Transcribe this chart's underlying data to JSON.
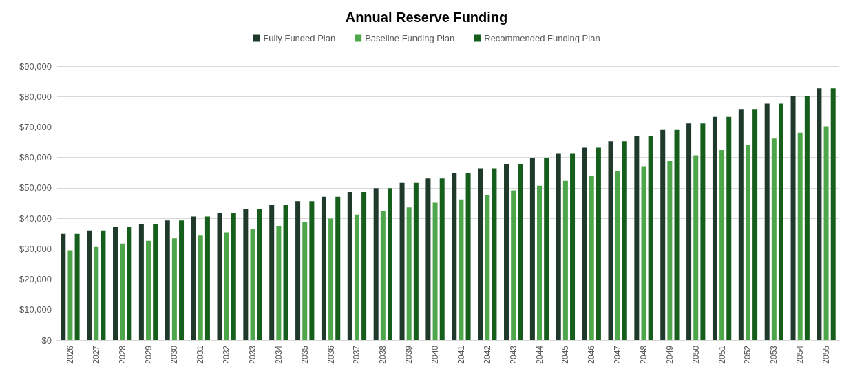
{
  "chart_data": {
    "type": "bar",
    "title": "Annual Reserve Funding",
    "categories": [
      "2026",
      "2027",
      "2028",
      "2029",
      "2030",
      "2031",
      "2032",
      "2033",
      "2034",
      "2035",
      "2036",
      "2037",
      "2038",
      "2039",
      "2040",
      "2041",
      "2042",
      "2043",
      "2044",
      "2045",
      "2046",
      "2047",
      "2048",
      "2049",
      "2050",
      "2051",
      "2052",
      "2053",
      "2054",
      "2055"
    ],
    "series": [
      {
        "name": "Fully Funded Plan",
        "color": "#1f3a2b",
        "values": [
          34900,
          36000,
          37100,
          38200,
          39300,
          40600,
          41700,
          43000,
          44300,
          45600,
          47100,
          48600,
          49900,
          51600,
          53100,
          54700,
          56400,
          57900,
          59700,
          61400,
          63200,
          65300,
          67100,
          69000,
          71200,
          73300,
          75700,
          77700,
          80200,
          82700
        ]
      },
      {
        "name": "Baseline Funding Plan",
        "color": "#4ea64a",
        "values": [
          29500,
          30600,
          31700,
          32600,
          33400,
          34300,
          35400,
          36500,
          37500,
          38800,
          39900,
          41200,
          42300,
          43600,
          45100,
          46200,
          47700,
          49200,
          50700,
          52300,
          53800,
          55500,
          57100,
          58800,
          60700,
          62400,
          64200,
          66200,
          68100,
          70200
        ]
      },
      {
        "name": "Recommended Funding Plan",
        "color": "#155e1c",
        "values": [
          34900,
          36000,
          37100,
          38200,
          39300,
          40600,
          41700,
          43000,
          44300,
          45600,
          47100,
          48600,
          49900,
          51600,
          53100,
          54700,
          56400,
          57900,
          59700,
          61400,
          63200,
          65300,
          67100,
          69000,
          71200,
          73300,
          75700,
          77700,
          80200,
          82700
        ]
      }
    ],
    "ylim": [
      0,
      90000
    ],
    "yticks": [
      {
        "value": 0,
        "label": "$0"
      },
      {
        "value": 10000,
        "label": "$10,000"
      },
      {
        "value": 20000,
        "label": "$20,000"
      },
      {
        "value": 30000,
        "label": "$30,000"
      },
      {
        "value": 40000,
        "label": "$40,000"
      },
      {
        "value": 50000,
        "label": "$50,000"
      },
      {
        "value": 60000,
        "label": "$60,000"
      },
      {
        "value": 70000,
        "label": "$70,000"
      },
      {
        "value": 80000,
        "label": "$80,000"
      },
      {
        "value": 90000,
        "label": "$90,000"
      }
    ],
    "grid": "y",
    "legend": "top"
  }
}
